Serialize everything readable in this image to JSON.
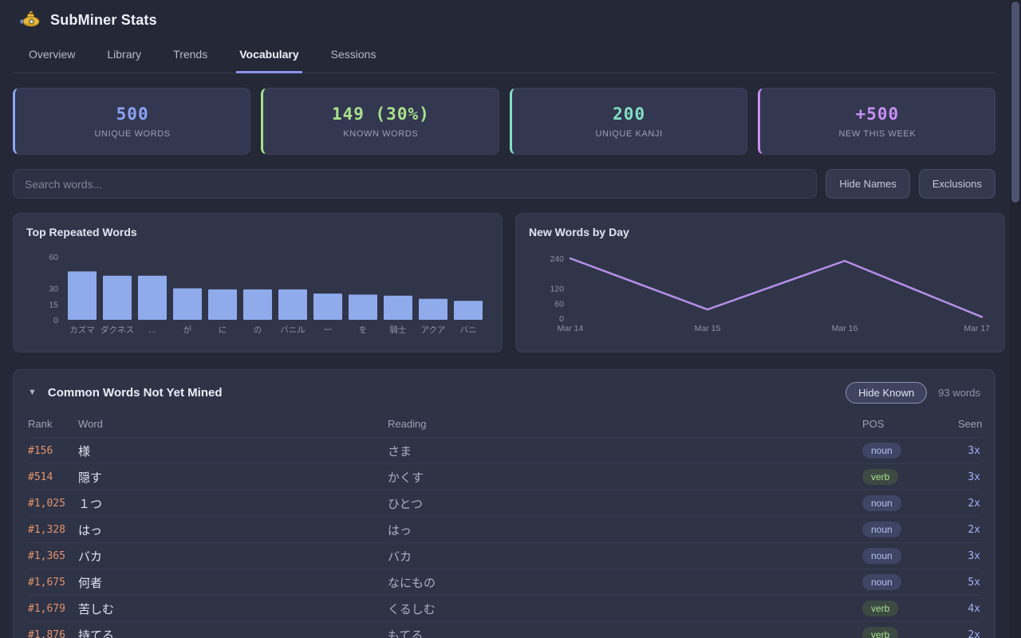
{
  "app": {
    "title": "SubMiner Stats",
    "logo_icon": "submarine-icon"
  },
  "tabs": [
    {
      "label": "Overview",
      "active": false
    },
    {
      "label": "Library",
      "active": false
    },
    {
      "label": "Trends",
      "active": false
    },
    {
      "label": "Vocabulary",
      "active": true
    },
    {
      "label": "Sessions",
      "active": false
    }
  ],
  "stats": [
    {
      "value": "500",
      "label": "UNIQUE WORDS",
      "color": "#8ba4f5"
    },
    {
      "value": "149 (30%)",
      "label": "KNOWN WORDS",
      "color": "#a9e18c"
    },
    {
      "value": "200",
      "label": "UNIQUE KANJI",
      "color": "#82dfc5"
    },
    {
      "value": "+500",
      "label": "NEW THIS WEEK",
      "color": "#c88ff2"
    }
  ],
  "controls": {
    "search_placeholder": "Search words...",
    "hide_names_label": "Hide Names",
    "exclusions_label": "Exclusions"
  },
  "chart_data": [
    {
      "type": "bar",
      "title": "Top Repeated Words",
      "categories": [
        "カズマ",
        "ダクネス",
        "…",
        "が",
        "に",
        "の",
        "バニル",
        "一",
        "を",
        "騎士",
        "アクア",
        "バニ"
      ],
      "values": [
        46,
        42,
        42,
        30,
        29,
        29,
        29,
        25,
        24,
        23,
        20,
        18
      ],
      "yticks": [
        60,
        30,
        15,
        0
      ],
      "ylim": [
        0,
        60
      ],
      "bar_color": "#8fabec",
      "grid": false,
      "legend": "none"
    },
    {
      "type": "line",
      "title": "New Words by Day",
      "x": [
        "Mar 14",
        "Mar 15",
        "Mar 16",
        "Mar 17"
      ],
      "values": [
        240,
        35,
        230,
        5
      ],
      "yticks": [
        240,
        120,
        60,
        0
      ],
      "ylim": [
        0,
        240
      ],
      "line_color": "#b48fe8",
      "grid": false,
      "legend": "none"
    }
  ],
  "table": {
    "collapse_icon": "▼",
    "title": "Common Words Not Yet Mined",
    "hide_known_label": "Hide Known",
    "word_count": "93 words",
    "columns": [
      "Rank",
      "Word",
      "Reading",
      "POS",
      "Seen"
    ],
    "rows": [
      {
        "rank": "#156",
        "word": "様",
        "reading": "さま",
        "pos": "noun",
        "seen": "3x"
      },
      {
        "rank": "#514",
        "word": "隠す",
        "reading": "かくす",
        "pos": "verb",
        "seen": "3x"
      },
      {
        "rank": "#1,025",
        "word": "１つ",
        "reading": "ひとつ",
        "pos": "noun",
        "seen": "2x"
      },
      {
        "rank": "#1,328",
        "word": "はっ",
        "reading": "はっ",
        "pos": "noun",
        "seen": "2x"
      },
      {
        "rank": "#1,365",
        "word": "バカ",
        "reading": "バカ",
        "pos": "noun",
        "seen": "3x"
      },
      {
        "rank": "#1,675",
        "word": "何者",
        "reading": "なにもの",
        "pos": "noun",
        "seen": "5x"
      },
      {
        "rank": "#1,679",
        "word": "苦しむ",
        "reading": "くるしむ",
        "pos": "verb",
        "seen": "4x"
      },
      {
        "rank": "#1,876",
        "word": "持てる",
        "reading": "もてる",
        "pos": "verb",
        "seen": "2x"
      }
    ]
  }
}
